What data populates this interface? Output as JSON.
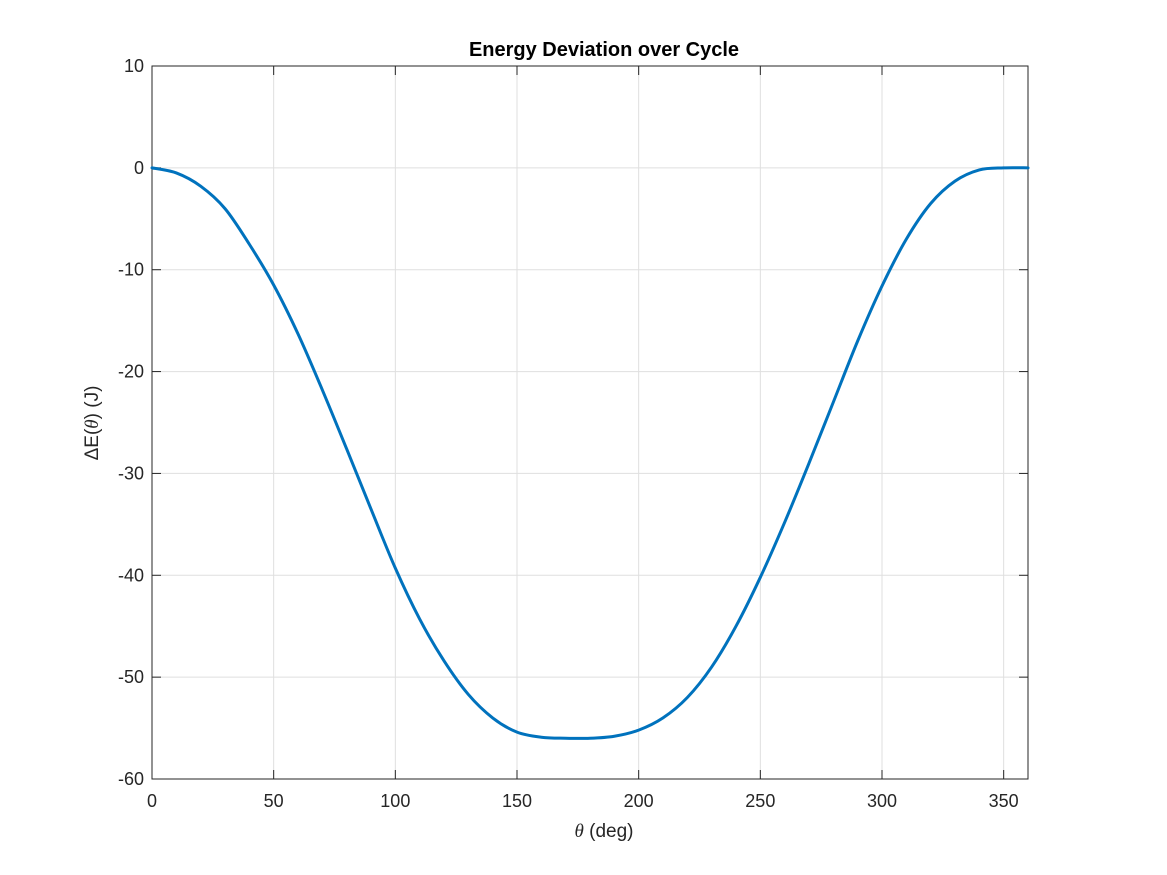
{
  "chart_data": {
    "type": "line",
    "title": "Energy Deviation over Cycle",
    "xlabel_symbol": "θ",
    "xlabel_unit": " (deg)",
    "ylabel_prefix": "ΔE(",
    "ylabel_symbol": "θ",
    "ylabel_suffix": ") (J)",
    "xlim": [
      0,
      360
    ],
    "ylim": [
      -60,
      10
    ],
    "xticks": [
      0,
      50,
      100,
      150,
      200,
      250,
      300,
      350
    ],
    "yticks": [
      10,
      0,
      -10,
      -20,
      -30,
      -40,
      -50,
      -60
    ],
    "grid": true,
    "legend": "none",
    "line_color": "#0072BD",
    "series": [
      {
        "x": [
          0,
          10,
          20,
          30,
          40,
          50,
          60,
          70,
          80,
          90,
          100,
          110,
          120,
          130,
          140,
          150,
          160,
          170,
          180,
          190,
          200,
          210,
          220,
          230,
          240,
          250,
          260,
          270,
          280,
          290,
          300,
          310,
          320,
          330,
          340,
          350,
          360
        ],
        "y": [
          0,
          -0.5,
          -1.8,
          -4.0,
          -7.5,
          -11.5,
          -16.3,
          -21.8,
          -27.6,
          -33.5,
          -39.3,
          -44.3,
          -48.4,
          -51.7,
          -54.0,
          -55.4,
          -55.9,
          -56.0,
          -56.0,
          -55.8,
          -55.2,
          -54.0,
          -52.0,
          -49.0,
          -45.0,
          -40.2,
          -34.8,
          -29.0,
          -23.0,
          -17.0,
          -11.6,
          -7.0,
          -3.5,
          -1.3,
          -0.2,
          0,
          0
        ]
      }
    ]
  }
}
